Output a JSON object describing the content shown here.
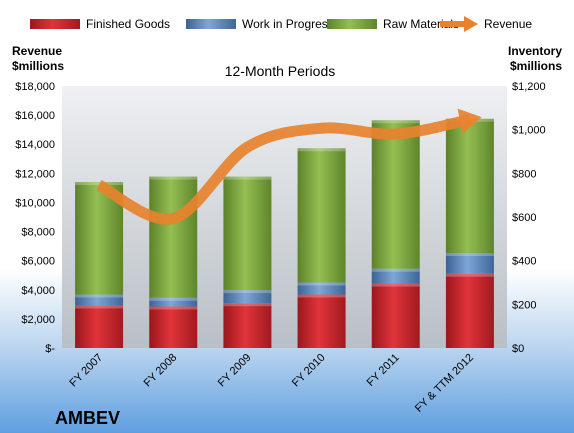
{
  "chart_data": {
    "type": "bar",
    "title": "12-Month Periods",
    "company": "AMBEV",
    "categories": [
      "FY 2007",
      "FY 2008",
      "FY 2009",
      "FY 2010",
      "FY 2011",
      "FY & TTM 2012"
    ],
    "ylabel_left": [
      "Revenue",
      "$millions"
    ],
    "ylabel_right": [
      "Inventory",
      "$millions"
    ],
    "y_left_ticks": [
      "$-",
      "$2,000",
      "$4,000",
      "$6,000",
      "$8,000",
      "$10,000",
      "$12,000",
      "$14,000",
      "$16,000",
      "$18,000"
    ],
    "y_right_ticks": [
      "$0",
      "$200",
      "$400",
      "$600",
      "$800",
      "$1,000",
      "$1,200"
    ],
    "ylim_left": [
      0,
      18000
    ],
    "ylim_right": [
      0,
      1200
    ],
    "stacked": true,
    "series": [
      {
        "name": "Finished Goods",
        "axis": "right",
        "color": "#cc2229",
        "values": [
          195,
          190,
          205,
          245,
          295,
          340
        ]
      },
      {
        "name": "Work in Progress",
        "axis": "right",
        "color": "#4f81bd",
        "values": [
          50,
          40,
          60,
          55,
          68,
          95
        ]
      },
      {
        "name": "Raw Materials",
        "axis": "right",
        "color": "#77a33a",
        "values": [
          515,
          555,
          520,
          615,
          680,
          615
        ]
      },
      {
        "name": "Revenue",
        "axis": "left",
        "type": "line",
        "color": "#e8822e",
        "values": [
          11200,
          8900,
          13800,
          15100,
          14700,
          15700
        ]
      }
    ],
    "legend_position": "top",
    "grid": false
  }
}
